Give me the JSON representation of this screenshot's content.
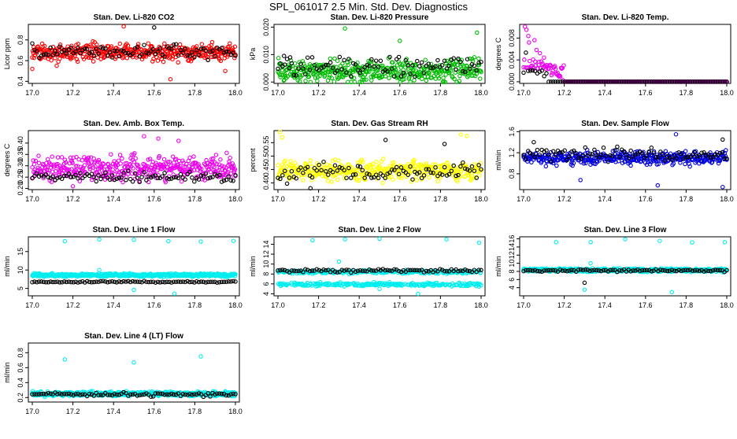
{
  "page_title": "SPL_061017  2.5 Min. Std. Dev. Diagnostics",
  "colors": {
    "black_series": "#000000"
  },
  "chart_data": [
    {
      "id": "co2",
      "type": "scatter",
      "title": "Stan. Dev. Li-820 CO2",
      "ylabel": "Licor ppm",
      "xlim": [
        17.0,
        18.0
      ],
      "ylim": [
        0.38,
        0.95
      ],
      "xticks": [
        "17.0",
        "17.2",
        "17.4",
        "17.6",
        "17.8",
        "18.0"
      ],
      "yticks": [
        "0.4",
        "0.6",
        "0.8"
      ],
      "series": [
        {
          "name": "colored",
          "color": "#ff0000",
          "n": 430,
          "base": 0.68,
          "spread": 0.07,
          "outliers": [
            [
              17.0,
              0.52
            ],
            [
              17.45,
              0.93
            ],
            [
              17.68,
              0.42
            ],
            [
              17.95,
              0.5
            ],
            [
              17.12,
              0.55
            ]
          ]
        },
        {
          "name": "black",
          "color": "#000000",
          "n": 90,
          "base": 0.69,
          "spread": 0.06,
          "outliers": [
            [
              17.6,
              0.92
            ]
          ]
        }
      ]
    },
    {
      "id": "pressure",
      "type": "scatter",
      "title": "Stan. Dev. Li-820 Pressure",
      "ylabel": "kPa",
      "xlim": [
        17.0,
        18.0
      ],
      "ylim": [
        -0.0005,
        0.021
      ],
      "xticks": [
        "17.0",
        "17.2",
        "17.4",
        "17.6",
        "17.8",
        "18.0"
      ],
      "yticks": [
        "0.000",
        "0.010",
        "0.020"
      ],
      "series": [
        {
          "name": "colored",
          "color": "#00bb00",
          "n": 420,
          "base": 0.004,
          "spread": 0.0035,
          "floor": 0.0,
          "outliers": [
            [
              17.33,
              0.0195
            ],
            [
              17.6,
              0.015
            ],
            [
              17.98,
              0.018
            ]
          ]
        },
        {
          "name": "black",
          "color": "#000000",
          "n": 90,
          "base": 0.006,
          "spread": 0.003,
          "floor": 0.0,
          "outliers": [
            [
              17.03,
              0.0095
            ],
            [
              17.06,
              0.009
            ]
          ]
        }
      ]
    },
    {
      "id": "temp",
      "type": "scatter",
      "title": "Stan. Dev. Li-820 Temp.",
      "ylabel": "degrees C",
      "xlim": [
        17.0,
        18.0
      ],
      "ylim": [
        -0.0003,
        0.0105
      ],
      "xticks": [
        "17.0",
        "17.2",
        "17.4",
        "17.6",
        "17.8",
        "18.0"
      ],
      "yticks": [
        "0.000",
        "0.004",
        "0.008"
      ],
      "series": [
        {
          "name": "colored",
          "color": "#ee00ee",
          "n": 300,
          "base": 0.0,
          "spread": 0.0,
          "floor": 0.0,
          "decay": {
            "x0": 17.0,
            "x1": 17.2,
            "max": 0.0105
          }
        },
        {
          "name": "black",
          "color": "#000000",
          "n": 90,
          "base": 0.0,
          "spread": 0.0,
          "floor": 0.0,
          "decay": {
            "x0": 17.0,
            "x1": 17.12,
            "max": 0.007
          }
        }
      ]
    },
    {
      "id": "boxtemp",
      "type": "scatter",
      "title": "Stan. Dev. Amb. Box Temp.",
      "ylabel": "degrees C",
      "xlim": [
        17.0,
        18.0
      ],
      "ylim": [
        0.195,
        0.455
      ],
      "xticks": [
        "17.0",
        "17.2",
        "17.4",
        "17.6",
        "17.8",
        "18.0"
      ],
      "yticks": [
        "0.20",
        "0.25",
        "0.30",
        "0.35",
        "0.40"
      ],
      "series": [
        {
          "name": "colored",
          "color": "#ee00ee",
          "n": 420,
          "base": 0.29,
          "spread": 0.045,
          "outliers": [
            [
              17.55,
              0.43
            ],
            [
              17.62,
              0.42
            ],
            [
              17.72,
              0.41
            ],
            [
              17.2,
              0.21
            ]
          ]
        },
        {
          "name": "black",
          "color": "#000000",
          "n": 90,
          "base": 0.25,
          "spread": 0.02
        }
      ]
    },
    {
      "id": "rh",
      "type": "scatter",
      "title": "Stan. Dev. Gas Stream RH",
      "ylabel": "percent",
      "xlim": [
        17.0,
        18.0
      ],
      "ylim": [
        0.375,
        0.595
      ],
      "xticks": [
        "17.0",
        "17.2",
        "17.4",
        "17.6",
        "17.8",
        "18.0"
      ],
      "yticks": [
        "0.40",
        "0.45",
        "0.50",
        "0.55"
      ],
      "series": [
        {
          "name": "colored",
          "color": "#ffff00",
          "n": 420,
          "base": 0.445,
          "spread": 0.03,
          "outliers": [
            [
              17.01,
              0.59
            ],
            [
              17.9,
              0.58
            ],
            [
              17.93,
              0.575
            ],
            [
              17.02,
              0.57
            ]
          ]
        },
        {
          "name": "black",
          "color": "#000000",
          "n": 90,
          "base": 0.44,
          "spread": 0.028,
          "outliers": [
            [
              17.16,
              0.38
            ],
            [
              17.53,
              0.56
            ],
            [
              17.82,
              0.545
            ]
          ]
        }
      ]
    },
    {
      "id": "sflow",
      "type": "scatter",
      "title": "Stan. Dev. Sample Flow",
      "ylabel": "ml/min",
      "xlim": [
        17.0,
        18.0
      ],
      "ylim": [
        0.5,
        1.62
      ],
      "xticks": [
        "17.0",
        "17.2",
        "17.4",
        "17.6",
        "17.8",
        "18.0"
      ],
      "yticks": [
        "0.8",
        "1.2",
        "1.6"
      ],
      "series": [
        {
          "name": "colored",
          "color": "#0000dd",
          "n": 420,
          "base": 1.1,
          "spread": 0.1,
          "outliers": [
            [
              17.28,
              0.68
            ],
            [
              17.66,
              0.58
            ],
            [
              17.75,
              1.55
            ],
            [
              17.98,
              0.55
            ]
          ]
        },
        {
          "name": "black",
          "color": "#000000",
          "n": 90,
          "base": 1.17,
          "spread": 0.1,
          "outliers": [
            [
              17.05,
              1.4
            ],
            [
              17.98,
              1.45
            ]
          ]
        }
      ]
    },
    {
      "id": "line1",
      "type": "scatter",
      "title": "Stan. Dev. Line 1 Flow",
      "ylabel": "ml/min",
      "xlim": [
        17.0,
        18.0
      ],
      "ylim": [
        3.0,
        19.0
      ],
      "xticks": [
        "17.0",
        "17.2",
        "17.4",
        "17.6",
        "17.8",
        "18.0"
      ],
      "yticks": [
        "5",
        "10",
        "15"
      ],
      "series": [
        {
          "name": "colored",
          "color": "#00eeee",
          "n": 500,
          "base": 8.6,
          "spread": 0.35,
          "outliers": [
            [
              17.16,
              17.8
            ],
            [
              17.33,
              18.3
            ],
            [
              17.5,
              18.2
            ],
            [
              17.67,
              17.8
            ],
            [
              17.83,
              17.7
            ],
            [
              17.99,
              17.9
            ],
            [
              17.5,
              4.6
            ],
            [
              17.7,
              3.6
            ],
            [
              17.33,
              10.0
            ]
          ]
        },
        {
          "name": "black",
          "color": "#000000",
          "n": 90,
          "base": 6.8,
          "spread": 0.18
        }
      ]
    },
    {
      "id": "line2",
      "type": "scatter",
      "title": "Stan. Dev. Line 2 Flow",
      "ylabel": "ml/min",
      "xlim": [
        17.0,
        18.0
      ],
      "ylim": [
        3.6,
        15.5
      ],
      "xticks": [
        "17.0",
        "17.2",
        "17.4",
        "17.6",
        "17.8",
        "18.0"
      ],
      "yticks": [
        "4",
        "6",
        "8",
        "10",
        "12",
        "14"
      ],
      "series": [
        {
          "name": "colored",
          "color": "#00eeee",
          "n": 500,
          "base": 8.4,
          "spread": 0.3,
          "band2": 5.9,
          "outliers": [
            [
              17.17,
              14.8
            ],
            [
              17.33,
              15.0
            ],
            [
              17.5,
              15.1
            ],
            [
              17.83,
              15.0
            ],
            [
              17.99,
              14.3
            ],
            [
              17.3,
              10.5
            ],
            [
              17.69,
              4.0
            ],
            [
              17.5,
              5.0
            ]
          ]
        },
        {
          "name": "black",
          "color": "#000000",
          "n": 90,
          "base": 8.7,
          "spread": 0.3
        }
      ]
    },
    {
      "id": "line3",
      "type": "scatter",
      "title": "Stan. Dev. Line 3 Flow",
      "ylabel": "ml/min",
      "xlim": [
        17.0,
        18.0
      ],
      "ylim": [
        2.0,
        16.5
      ],
      "xticks": [
        "17.0",
        "17.2",
        "17.4",
        "17.6",
        "17.8",
        "18.0"
      ],
      "yticks": [
        "4",
        "6",
        "8",
        "10",
        "12",
        "14",
        "16"
      ],
      "series": [
        {
          "name": "colored",
          "color": "#00eeee",
          "n": 500,
          "base": 8.3,
          "spread": 0.35,
          "outliers": [
            [
              17.16,
              15.2
            ],
            [
              17.33,
              15.2
            ],
            [
              17.5,
              15.9
            ],
            [
              17.67,
              15.5
            ],
            [
              17.83,
              15.1
            ],
            [
              17.99,
              15.2
            ],
            [
              17.33,
              10.0
            ],
            [
              17.3,
              3.5
            ],
            [
              17.73,
              2.9
            ]
          ]
        },
        {
          "name": "black",
          "color": "#000000",
          "n": 90,
          "base": 8.2,
          "spread": 0.25,
          "outliers": [
            [
              17.3,
              5.2
            ]
          ]
        }
      ]
    },
    {
      "id": "line4",
      "type": "scatter",
      "title": "Stan. Dev. Line 4 (LT) Flow",
      "ylabel": "ml/min",
      "xlim": [
        17.0,
        18.0
      ],
      "ylim": [
        0.14,
        0.93
      ],
      "xticks": [
        "17.0",
        "17.2",
        "17.4",
        "17.6",
        "17.8",
        "18.0"
      ],
      "yticks": [
        "0.2",
        "0.4",
        "0.6",
        "0.8"
      ],
      "series": [
        {
          "name": "colored",
          "color": "#00eeee",
          "n": 500,
          "base": 0.25,
          "spread": 0.025,
          "outliers": [
            [
              17.16,
              0.71
            ],
            [
              17.5,
              0.67
            ],
            [
              17.83,
              0.75
            ]
          ]
        },
        {
          "name": "black",
          "color": "#000000",
          "n": 90,
          "base": 0.24,
          "spread": 0.02
        }
      ]
    }
  ]
}
